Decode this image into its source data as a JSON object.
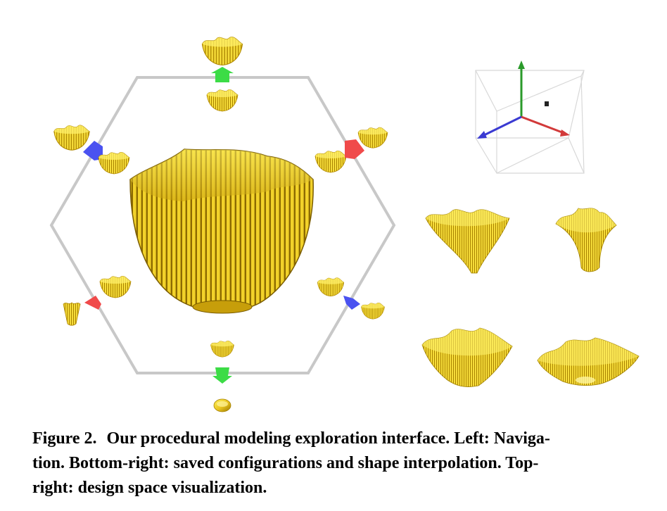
{
  "caption": {
    "label": "Figure 2.",
    "text": "Our procedural modeling exploration interface. Left: Naviga-tion. Bottom-right: saved configurations and shape interpolation. Top-right: design space visualization.",
    "line1": "Our procedural modeling exploration interface. Left: Naviga-",
    "line2": "tion. Bottom-right: saved configurations and shape interpolation. Top-",
    "line3": "right: design space visualization."
  },
  "colors": {
    "shape_gold": "#e8c31e",
    "shape_light": "#fff15a",
    "shape_dark": "#8a6a00",
    "hexagon": "#c8c8c8",
    "arrow_green": "#3cdc46",
    "arrow_red": "#f04a4a",
    "arrow_blue": "#4a52f0",
    "axis_green": "#2a9a2a",
    "axis_red": "#d23a3a",
    "axis_blue": "#3a3ad2",
    "cube_line": "#d8d8d8"
  },
  "icons": {
    "arrows": [
      "up-arrow-green",
      "down-arrow-green",
      "left-arrow-blue",
      "right-arrow-red",
      "lower-left-arrow-red",
      "lower-right-arrow-blue"
    ],
    "axes": [
      "y-axis-green",
      "x-axis-red",
      "z-axis-blue"
    ]
  }
}
